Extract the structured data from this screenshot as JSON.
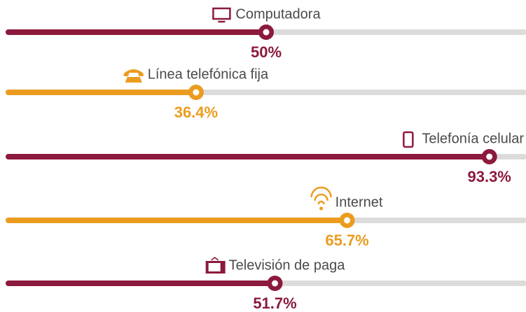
{
  "chart_data": {
    "type": "progress",
    "categories": [
      "Computadora",
      "Línea telefónica fija",
      "Telefonía celular",
      "Internet",
      "Televisión de paga"
    ],
    "values": [
      50,
      36.4,
      93.3,
      65.7,
      51.7
    ],
    "value_labels": [
      "50%",
      "36.4%",
      "93.3%",
      "65.7%",
      "51.7%"
    ],
    "colors": [
      "#8c1a3c",
      "#eb9c1f",
      "#8c1a3c",
      "#eb9c1f",
      "#8c1a3c"
    ],
    "xlim": [
      0,
      100
    ]
  }
}
